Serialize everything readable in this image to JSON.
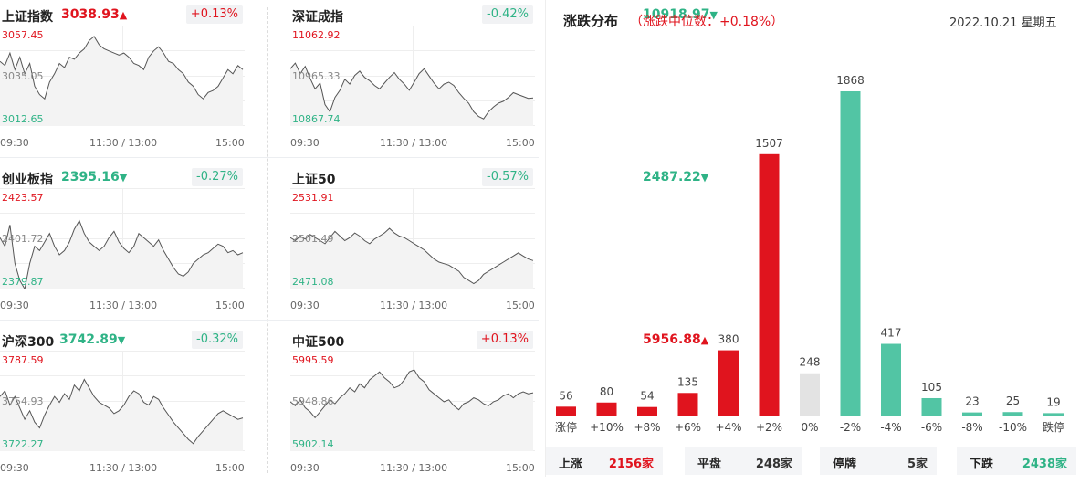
{
  "panels": [
    {
      "name": "上证指数",
      "price": "3038.93",
      "arrow": "▲",
      "dir": "up",
      "change": "+0.13%",
      "hi": "3057.45",
      "mid": "3035.05",
      "lo": "3012.65",
      "times": [
        "09:30",
        "11:30 / 13:00",
        "15:00"
      ],
      "series": [
        3042,
        3040,
        3046,
        3038,
        3044,
        3036,
        3041,
        3030,
        3026,
        3024,
        3032,
        3036,
        3041,
        3039,
        3044,
        3043,
        3046,
        3048,
        3052,
        3054,
        3050,
        3048,
        3047,
        3046,
        3045,
        3046,
        3044,
        3041,
        3040,
        3038,
        3044,
        3047,
        3049,
        3046,
        3042,
        3041,
        3038,
        3036,
        3032,
        3030,
        3026,
        3024,
        3027,
        3028,
        3030,
        3034,
        3038,
        3036,
        3040,
        3038
      ]
    },
    {
      "name": "深证成指",
      "price": "10918.97",
      "arrow": "▼",
      "dir": "down",
      "change": "-0.42%",
      "hi": "11062.92",
      "mid": "10965.33",
      "lo": "10867.74",
      "times": [
        "09:30",
        "11:30 / 13:00",
        "15:00"
      ],
      "series": [
        10980,
        10992,
        10970,
        10985,
        10960,
        10938,
        10950,
        10905,
        10890,
        10920,
        10935,
        10958,
        10948,
        10966,
        10975,
        10962,
        10955,
        10945,
        10938,
        10950,
        10962,
        10972,
        10958,
        10948,
        10935,
        10952,
        10970,
        10980,
        10965,
        10950,
        10938,
        10948,
        10952,
        10945,
        10930,
        10918,
        10908,
        10890,
        10880,
        10875,
        10890,
        10900,
        10908,
        10912,
        10920,
        10930,
        10926,
        10922,
        10918,
        10919
      ]
    },
    {
      "name": "创业板指",
      "price": "2395.16",
      "arrow": "▼",
      "dir": "down",
      "change": "-0.27%",
      "hi": "2423.57",
      "mid": "2401.72",
      "lo": "2379.87",
      "times": [
        "09:30",
        "11:30 / 13:00",
        "15:00"
      ],
      "series": [
        2402,
        2398,
        2408,
        2390,
        2382,
        2378,
        2390,
        2398,
        2396,
        2400,
        2404,
        2398,
        2394,
        2396,
        2400,
        2406,
        2410,
        2404,
        2400,
        2398,
        2396,
        2398,
        2402,
        2405,
        2400,
        2397,
        2395,
        2398,
        2404,
        2402,
        2400,
        2398,
        2401,
        2396,
        2392,
        2388,
        2385,
        2384,
        2386,
        2390,
        2392,
        2394,
        2395,
        2397,
        2399,
        2398,
        2395,
        2396,
        2394,
        2395
      ]
    },
    {
      "name": "上证50",
      "price": "2487.22",
      "arrow": "▼",
      "dir": "down",
      "change": "-0.57%",
      "hi": "2531.91",
      "mid": "2501.49",
      "lo": "2471.08",
      "times": [
        "09:30",
        "11:30 / 13:00",
        "15:00"
      ],
      "series": [
        2502,
        2500,
        2503,
        2501,
        2504,
        2502,
        2500,
        2498,
        2502,
        2506,
        2503,
        2500,
        2502,
        2505,
        2503,
        2500,
        2498,
        2501,
        2503,
        2505,
        2508,
        2505,
        2503,
        2502,
        2500,
        2498,
        2496,
        2494,
        2491,
        2488,
        2486,
        2485,
        2484,
        2482,
        2480,
        2476,
        2474,
        2472,
        2474,
        2478,
        2480,
        2482,
        2484,
        2486,
        2488,
        2490,
        2492,
        2490,
        2488,
        2487
      ]
    },
    {
      "name": "沪深300",
      "price": "3742.89",
      "arrow": "▼",
      "dir": "down",
      "change": "-0.32%",
      "hi": "3787.59",
      "mid": "3754.93",
      "lo": "3722.27",
      "times": [
        "09:30",
        "11:30 / 13:00",
        "15:00"
      ],
      "series": [
        3758,
        3762,
        3752,
        3758,
        3750,
        3742,
        3748,
        3740,
        3736,
        3745,
        3752,
        3758,
        3754,
        3760,
        3756,
        3766,
        3762,
        3770,
        3764,
        3758,
        3754,
        3752,
        3750,
        3746,
        3748,
        3752,
        3758,
        3762,
        3760,
        3754,
        3752,
        3758,
        3756,
        3750,
        3745,
        3740,
        3736,
        3732,
        3728,
        3725,
        3730,
        3734,
        3738,
        3742,
        3746,
        3748,
        3746,
        3744,
        3742,
        3743
      ]
    },
    {
      "name": "中证500",
      "price": "5956.88",
      "arrow": "▲",
      "dir": "up",
      "change": "+0.13%",
      "hi": "5995.59",
      "mid": "5948.86",
      "lo": "5902.14",
      "times": [
        "09:30",
        "11:30 / 13:00",
        "15:00"
      ],
      "series": [
        5948,
        5944,
        5950,
        5942,
        5938,
        5932,
        5938,
        5944,
        5950,
        5946,
        5952,
        5956,
        5962,
        5958,
        5966,
        5962,
        5970,
        5974,
        5978,
        5972,
        5968,
        5962,
        5964,
        5970,
        5978,
        5980,
        5972,
        5968,
        5960,
        5956,
        5952,
        5948,
        5950,
        5944,
        5940,
        5946,
        5948,
        5952,
        5950,
        5946,
        5944,
        5948,
        5950,
        5954,
        5956,
        5952,
        5956,
        5958,
        5956,
        5957
      ]
    }
  ],
  "distribution": {
    "title": "涨跌分布",
    "median": "（涨跌中位数：+0.18%）",
    "date": "2022.10.21 星期五",
    "colors": {
      "up": "#e0141e",
      "down": "#52c5a4",
      "flat": "#e3e3e3"
    },
    "stats": [
      {
        "label": "上涨",
        "value": "2156家",
        "color": "#e0141e"
      },
      {
        "label": "平盘",
        "value": "248家",
        "color": "#333333"
      },
      {
        "label": "停牌",
        "value": "5家",
        "color": "#333333"
      },
      {
        "label": "下跌",
        "value": "2438家",
        "color": "#2fb386"
      }
    ]
  },
  "chart_data": {
    "type": "bar",
    "categories": [
      "涨停",
      "+10%",
      "+8%",
      "+6%",
      "+4%",
      "+2%",
      "0%",
      "-2%",
      "-4%",
      "-6%",
      "-8%",
      "-10%",
      "跌停"
    ],
    "values": [
      56,
      80,
      54,
      135,
      380,
      1507,
      248,
      1868,
      417,
      105,
      23,
      25,
      19
    ],
    "kinds": [
      "up",
      "up",
      "up",
      "up",
      "up",
      "up",
      "flat",
      "down",
      "down",
      "down",
      "down",
      "down",
      "down"
    ]
  }
}
